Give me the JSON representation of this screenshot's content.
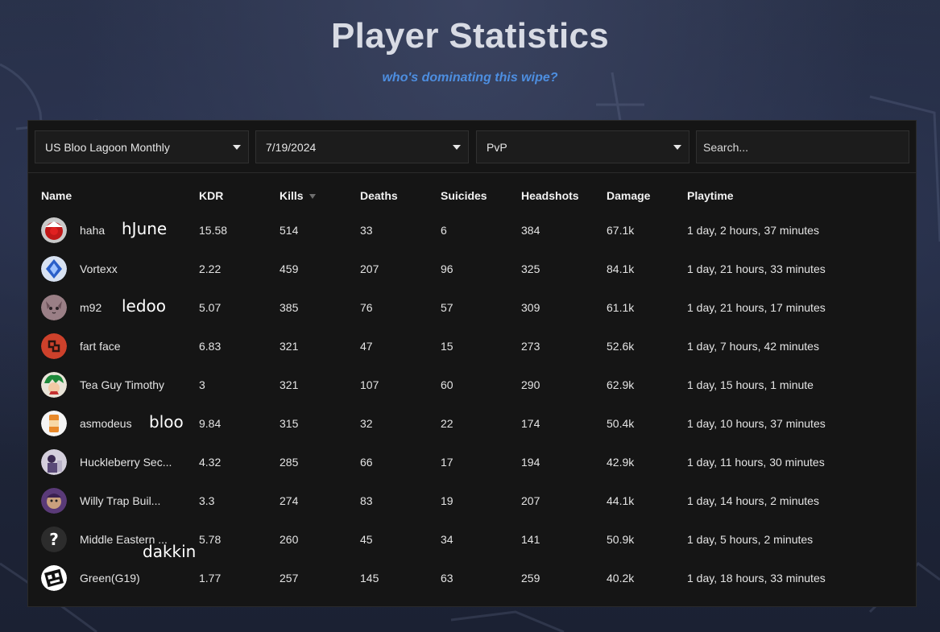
{
  "header": {
    "title": "Player Statistics",
    "subtitle": "who's dominating this wipe?"
  },
  "filters": {
    "server": "US Bloo Lagoon Monthly",
    "date": "7/19/2024",
    "mode": "PvP",
    "search_placeholder": "Search..."
  },
  "table": {
    "columns": [
      "Name",
      "KDR",
      "Kills",
      "Deaths",
      "Suicides",
      "Headshots",
      "Damage",
      "Playtime"
    ],
    "sorted_column": "Kills",
    "rows": [
      {
        "name": "haha",
        "kdr": "15.58",
        "kills": "514",
        "deaths": "33",
        "suicides": "6",
        "headshots": "384",
        "damage": "67.1k",
        "playtime": "1 day, 2 hours, 37 minutes",
        "avatar": "red-white-circle-icon"
      },
      {
        "name": "Vortexx",
        "kdr": "2.22",
        "kills": "459",
        "deaths": "207",
        "suicides": "96",
        "headshots": "325",
        "damage": "84.1k",
        "playtime": "1 day, 21 hours, 33 minutes",
        "avatar": "blue-crystal-icon"
      },
      {
        "name": "m92",
        "kdr": "5.07",
        "kills": "385",
        "deaths": "76",
        "suicides": "57",
        "headshots": "309",
        "damage": "61.1k",
        "playtime": "1 day, 21 hours, 17 minutes",
        "avatar": "cat-face-icon"
      },
      {
        "name": "fart face",
        "kdr": "6.83",
        "kills": "321",
        "deaths": "47",
        "suicides": "15",
        "headshots": "273",
        "damage": "52.6k",
        "playtime": "1 day, 7 hours, 42 minutes",
        "avatar": "rust-logo-icon"
      },
      {
        "name": "Tea Guy Timothy",
        "kdr": "3",
        "kills": "321",
        "deaths": "107",
        "suicides": "60",
        "headshots": "290",
        "damage": "62.9k",
        "playtime": "1 day, 15 hours, 1 minute",
        "avatar": "green-hair-character-icon"
      },
      {
        "name": "asmodeus",
        "kdr": "9.84",
        "kills": "315",
        "deaths": "32",
        "suicides": "22",
        "headshots": "174",
        "damage": "50.4k",
        "playtime": "1 day, 10 hours, 37 minutes",
        "avatar": "orange-can-icon"
      },
      {
        "name": "Huckleberry Sec...",
        "kdr": "4.32",
        "kills": "285",
        "deaths": "66",
        "suicides": "17",
        "headshots": "194",
        "damage": "42.9k",
        "playtime": "1 day, 11 hours, 30 minutes",
        "avatar": "purple-figure-icon"
      },
      {
        "name": "Willy Trap Buil...",
        "kdr": "3.3",
        "kills": "274",
        "deaths": "83",
        "suicides": "19",
        "headshots": "207",
        "damage": "44.1k",
        "playtime": "1 day, 14 hours, 2 minutes",
        "avatar": "purple-face-icon"
      },
      {
        "name": "Middle Eastern ...",
        "kdr": "5.78",
        "kills": "260",
        "deaths": "45",
        "suicides": "34",
        "headshots": "141",
        "damage": "50.9k",
        "playtime": "1 day, 5 hours, 2 minutes",
        "avatar": "question-mark-icon"
      },
      {
        "name": "Green(G19)",
        "kdr": "1.77",
        "kills": "257",
        "deaths": "145",
        "suicides": "63",
        "headshots": "259",
        "damage": "40.2k",
        "playtime": "1 day, 18 hours, 33 minutes",
        "avatar": "geometry-dash-cube-icon"
      }
    ]
  },
  "annotations": [
    "hJune",
    "ledoo",
    "bloo",
    "dakkin"
  ]
}
